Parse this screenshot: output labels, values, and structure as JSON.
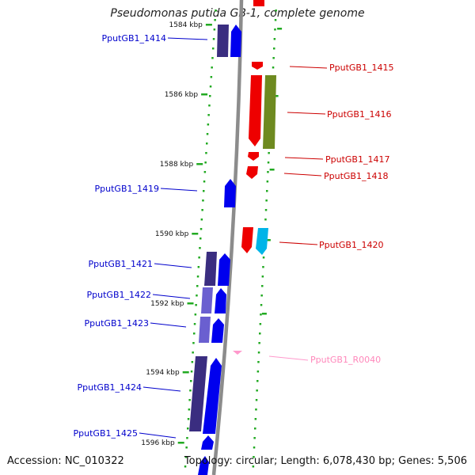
{
  "title": "Pseudomonas putida GB-1, complete genome",
  "footer": {
    "accession": "Accession: NC_010322",
    "topology": "Topology: circular; Length: 6,078,430 bp; Genes: 5,506"
  },
  "colors": {
    "forward_cds": "#0000ee",
    "forward_gene": "#3a2d80",
    "forward_gene_alt": "#6a5fd0",
    "reverse_cds": "#ee0000",
    "reverse_gene": "#6e8a20",
    "reverse_other": "#00b4e8",
    "rna": "#ff99cc",
    "backbone": "#888888",
    "tick_dots": "#22aa22"
  },
  "ticks": [
    "1584 kbp",
    "1586 kbp",
    "1588 kbp",
    "1590 kbp",
    "1592 kbp",
    "1594 kbp",
    "1596 kbp"
  ],
  "genes_forward": [
    {
      "label": "PputGB1_1414"
    },
    {
      "label": "PputGB1_1419"
    },
    {
      "label": "PputGB1_1421"
    },
    {
      "label": "PputGB1_1422"
    },
    {
      "label": "PputGB1_1423"
    },
    {
      "label": "PputGB1_1424"
    },
    {
      "label": "PputGB1_1425"
    }
  ],
  "genes_reverse": [
    {
      "label": "PputGB1_1415"
    },
    {
      "label": "PputGB1_1416"
    },
    {
      "label": "PputGB1_1417"
    },
    {
      "label": "PputGB1_1418"
    },
    {
      "label": "PputGB1_1420"
    }
  ],
  "genes_rna": [
    {
      "label": "PputGB1_R0040"
    }
  ]
}
